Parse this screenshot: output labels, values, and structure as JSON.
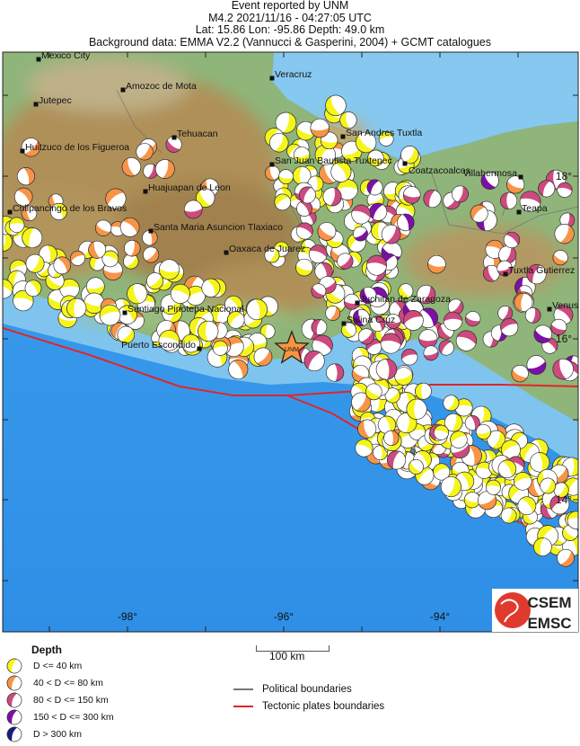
{
  "header": {
    "line1": "Event reported by UNM",
    "line2": "M4.2  2021/11/16 - 04:27:05 UTC",
    "line3": "Lat: 15.86    Lon: -95.86     Depth:  49.0 km",
    "line4": "Background data: EMMA V2.2 (Vannucci & Gasperini, 2004) + GCMT catalogues"
  },
  "event": {
    "agency": "UNM",
    "magnitude": 4.2,
    "lat": 15.86,
    "lon": -95.86,
    "depth_km": 49.0,
    "marker_color": "#f7943f"
  },
  "axes": {
    "lon_labels": [
      "-98°",
      "-96°",
      "-94°"
    ],
    "lat_labels": [
      "18°",
      "16°",
      "14°"
    ]
  },
  "cities": [
    "Mexico City",
    "Jutepec",
    "Amozoc de Mota",
    "Huitzuco de los Figueroa",
    "Tehuacan",
    "Huajuapan de Leon",
    "Chilpancingo de los Bravos",
    "Santa Maria Asuncion Tlaxiaco",
    "Oaxaca de Juarez",
    "Santiago Pinotepa Nacional",
    "Puerto Escondido",
    "Salina Cruz",
    "Juchitan de Zaragoza",
    "Veracruz",
    "San Andres Tuxtla",
    "San Juan Bautista Tuxtepec",
    "Coatzacoalcos",
    "Villahermosa",
    "Teapa",
    "Tuxtla Gutierrez",
    "Venus"
  ],
  "logo": {
    "line1": "CSEM",
    "line2": "EMSC",
    "color": "#e03a2f"
  },
  "legend": {
    "title": "Depth",
    "depth_classes": [
      {
        "label": "D <= 40 km",
        "color": "#f5f51c"
      },
      {
        "label": "40 < D <= 80 km",
        "color": "#f79448"
      },
      {
        "label": "80 < D <= 150 km",
        "color": "#cc4a7e"
      },
      {
        "label": "150 < D <= 300 km",
        "color": "#7d0fa8"
      },
      {
        "label": "D > 300 km",
        "color": "#1a1a80"
      }
    ],
    "scale_label": "100 km",
    "lines": [
      {
        "label": "Political boundaries",
        "color": "#777777"
      },
      {
        "label": "Tectonic plates boundaries",
        "color": "#e0262a"
      }
    ]
  }
}
